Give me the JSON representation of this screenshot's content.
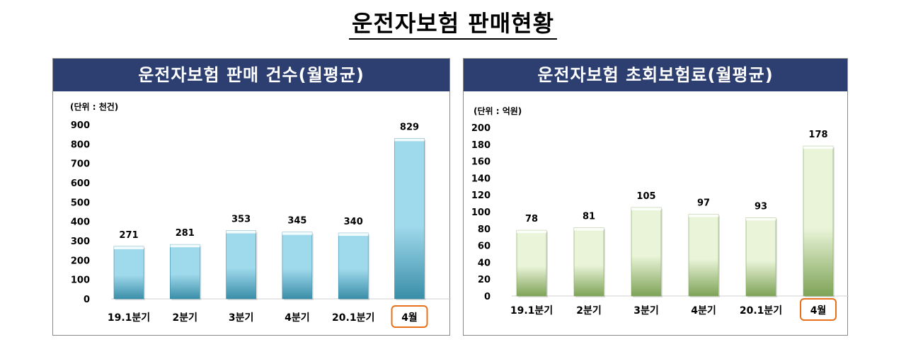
{
  "page_title": "운전자보험 판매현황",
  "chart_data": [
    {
      "type": "bar",
      "title": "운전자보험 판매 건수(월평균)",
      "unit_label": "(단위 : 천건)",
      "categories": [
        "19.1분기",
        "2분기",
        "3분기",
        "4분기",
        "20.1분기",
        "4월"
      ],
      "values": [
        271,
        281,
        353,
        345,
        340,
        829
      ],
      "value_labels": [
        "271",
        "281",
        "353",
        "345",
        "340",
        "829"
      ],
      "y_ticks": [
        "0",
        "100",
        "200",
        "300",
        "400",
        "500",
        "600",
        "700",
        "800",
        "900"
      ],
      "ylim": [
        0,
        900
      ],
      "highlight_category": "4월",
      "colors": {
        "bar_light": "#9fd9ec",
        "bar_dark": "#3a8ea8",
        "highlight_border": "#e8701a"
      }
    },
    {
      "type": "bar",
      "title": "운전자보험 초회보험료(월평균)",
      "unit_label": "(단위 : 억원)",
      "categories": [
        "19.1분기",
        "2분기",
        "3분기",
        "4분기",
        "20.1분기",
        "4월"
      ],
      "values": [
        78,
        81,
        105,
        97,
        93,
        178
      ],
      "value_labels": [
        "78",
        "81",
        "105",
        "97",
        "93",
        "178"
      ],
      "y_ticks": [
        "0",
        "20",
        "40",
        "60",
        "80",
        "100",
        "120",
        "140",
        "160",
        "180",
        "200"
      ],
      "ylim": [
        0,
        200
      ],
      "highlight_category": "4월",
      "colors": {
        "bar_light": "#e9f4d8",
        "bar_dark": "#7ea357",
        "highlight_border": "#e8701a"
      }
    }
  ]
}
